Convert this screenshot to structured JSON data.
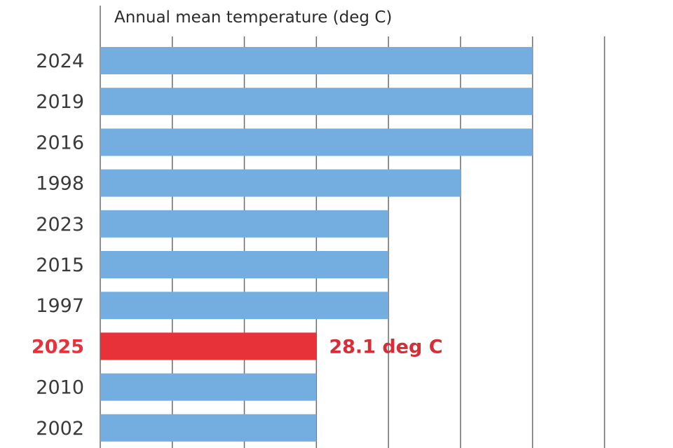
{
  "chart_data": {
    "type": "bar",
    "orientation": "horizontal",
    "title": "Annual mean temperature (deg C)",
    "xlabel": "",
    "ylabel": "",
    "categories": [
      "2024",
      "2019",
      "2016",
      "1998",
      "2023",
      "2015",
      "1997",
      "2025",
      "2010",
      "2002"
    ],
    "values": [
      28.7,
      28.7,
      28.7,
      28.5,
      28.3,
      28.3,
      28.3,
      28.1,
      28.1,
      28.1
    ],
    "highlight": {
      "category": "2025",
      "value_label": "28.1 deg C",
      "color": "#e8323a"
    },
    "bar_color": "#74aee0",
    "xlim": [
      27.5,
      29.0
    ],
    "gridlines": [
      27.5,
      27.7,
      27.9,
      28.1,
      28.3,
      28.5,
      28.7,
      28.9
    ],
    "grid": true,
    "legend": "none"
  }
}
